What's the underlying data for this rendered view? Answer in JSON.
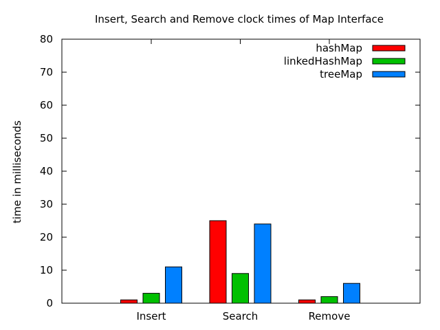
{
  "chart_data": {
    "type": "bar",
    "title": "Insert, Search and Remove clock times of Map Interface",
    "xlabel": "",
    "ylabel": "time in milliseconds",
    "categories": [
      "Insert",
      "Search",
      "Remove"
    ],
    "ylim": [
      0,
      80
    ],
    "yticks": [
      0,
      10,
      20,
      30,
      40,
      50,
      60,
      70,
      80
    ],
    "grid": false,
    "legend_position": "top-right",
    "series": [
      {
        "name": "hashMap",
        "color": "#ff0000",
        "values": [
          1,
          25,
          1
        ]
      },
      {
        "name": "linkedHashMap",
        "color": "#00c000",
        "values": [
          3,
          9,
          2
        ]
      },
      {
        "name": "treeMap",
        "color": "#0080ff",
        "values": [
          11,
          24,
          6
        ]
      }
    ]
  }
}
